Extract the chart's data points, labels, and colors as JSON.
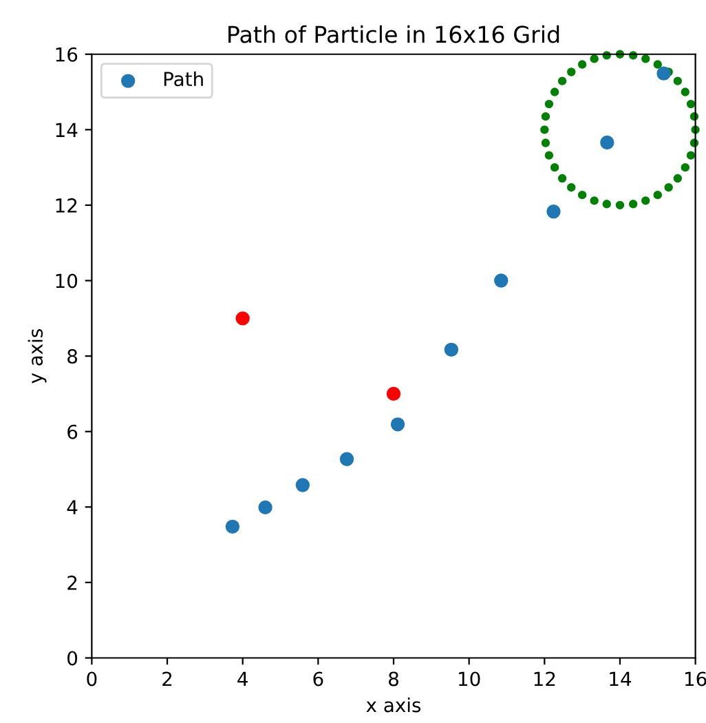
{
  "chart_data": {
    "type": "scatter",
    "title": "Path of Particle in 16x16 Grid",
    "xlabel": "x axis",
    "ylabel": "y axis",
    "xlim": [
      0,
      16
    ],
    "ylim": [
      0,
      16
    ],
    "xticks": [
      0,
      2,
      4,
      6,
      8,
      10,
      12,
      14,
      16
    ],
    "yticks": [
      0,
      2,
      4,
      6,
      8,
      10,
      12,
      14,
      16
    ],
    "grid": false,
    "legend": "top left",
    "marker": "circle",
    "series": [
      {
        "name": "Path",
        "color": "#1f77b4",
        "x": [
          3.73,
          4.6,
          5.59,
          6.76,
          8.11,
          9.53,
          10.85,
          12.24,
          13.66,
          15.16
        ],
        "values": [
          3.48,
          3.99,
          4.58,
          5.27,
          6.19,
          8.17,
          10.0,
          11.83,
          13.66,
          15.49
        ]
      },
      {
        "color": "#ff0000",
        "x": [
          4,
          8
        ],
        "values": [
          9,
          7
        ]
      },
      {
        "type": "scatter",
        "color": "#008000",
        "x": [
          16,
          15.97,
          15.88,
          15.73,
          15.53,
          15.29,
          15,
          14.68,
          14.35,
          14,
          13.65,
          13.32,
          13,
          12.71,
          12.47,
          12.27,
          12.12,
          12.03,
          12,
          12.03,
          12.12,
          12.27,
          12.47,
          12.71,
          13,
          13.32,
          13.65,
          14,
          14.35,
          14.68,
          15,
          15.29,
          15.53,
          15.73,
          15.88,
          15.97
        ],
        "values": [
          14,
          14.35,
          14.68,
          15,
          15.29,
          15.53,
          15.73,
          15.88,
          15.97,
          16,
          15.97,
          15.88,
          15.73,
          15.53,
          15.29,
          15,
          14.68,
          14.35,
          14,
          13.65,
          13.32,
          13,
          12.71,
          12.47,
          12.27,
          12.12,
          12.03,
          12,
          12.03,
          12.12,
          12.27,
          12.47,
          12.71,
          13,
          13.32,
          13.65
        ]
      }
    ]
  }
}
